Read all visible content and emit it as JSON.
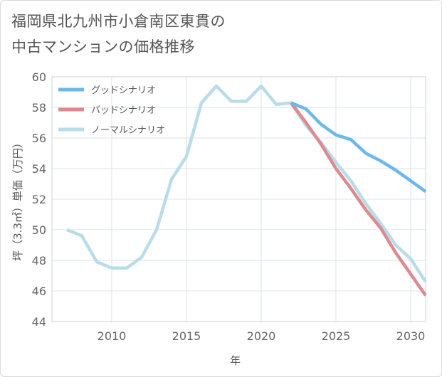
{
  "title_lines": [
    "福岡県北九州市小倉南区東貫の",
    "中古マンションの価格推移"
  ],
  "chart_data": {
    "type": "line",
    "title": "福岡県北九州市小倉南区東貫の中古マンションの価格推移",
    "xlabel": "年",
    "ylabel": "坪（3.3㎡）単価（万円）",
    "xlim": [
      2006,
      2031
    ],
    "ylim": [
      44,
      60
    ],
    "xticks": [
      2010,
      2015,
      2020,
      2025,
      2030
    ],
    "yticks": [
      44,
      46,
      48,
      50,
      52,
      54,
      56,
      58,
      60
    ],
    "grid": true,
    "legend_position": "top-left",
    "series": [
      {
        "name": "グッドシナリオ",
        "color": "#6cb8ec",
        "x": [
          2022,
          2023,
          2024,
          2025,
          2026,
          2027,
          2028,
          2029,
          2030,
          2031
        ],
        "y": [
          58.3,
          57.9,
          56.9,
          56.2,
          55.9,
          55.0,
          54.5,
          53.9,
          53.2,
          52.5
        ]
      },
      {
        "name": "バッドシナリオ",
        "color": "#dd8a8f",
        "x": [
          2022,
          2023,
          2024,
          2025,
          2026,
          2027,
          2028,
          2029,
          2030,
          2031
        ],
        "y": [
          58.3,
          57.0,
          55.6,
          54.0,
          52.7,
          51.3,
          50.1,
          48.5,
          47.1,
          45.7
        ]
      },
      {
        "name": "ノーマルシナリオ",
        "color": "#b9dcea",
        "x": [
          2007,
          2008,
          2009,
          2010,
          2011,
          2012,
          2013,
          2014,
          2015,
          2016,
          2017,
          2018,
          2019,
          2020,
          2021,
          2022,
          2023,
          2024,
          2025,
          2026,
          2027,
          2028,
          2029,
          2030,
          2031
        ],
        "y": [
          50.0,
          49.6,
          47.9,
          47.5,
          47.5,
          48.2,
          50.0,
          53.3,
          54.8,
          58.3,
          59.4,
          58.4,
          58.4,
          59.4,
          58.2,
          58.3,
          56.8,
          55.7,
          54.4,
          53.2,
          51.7,
          50.4,
          49.0,
          48.1,
          46.6
        ]
      }
    ]
  }
}
